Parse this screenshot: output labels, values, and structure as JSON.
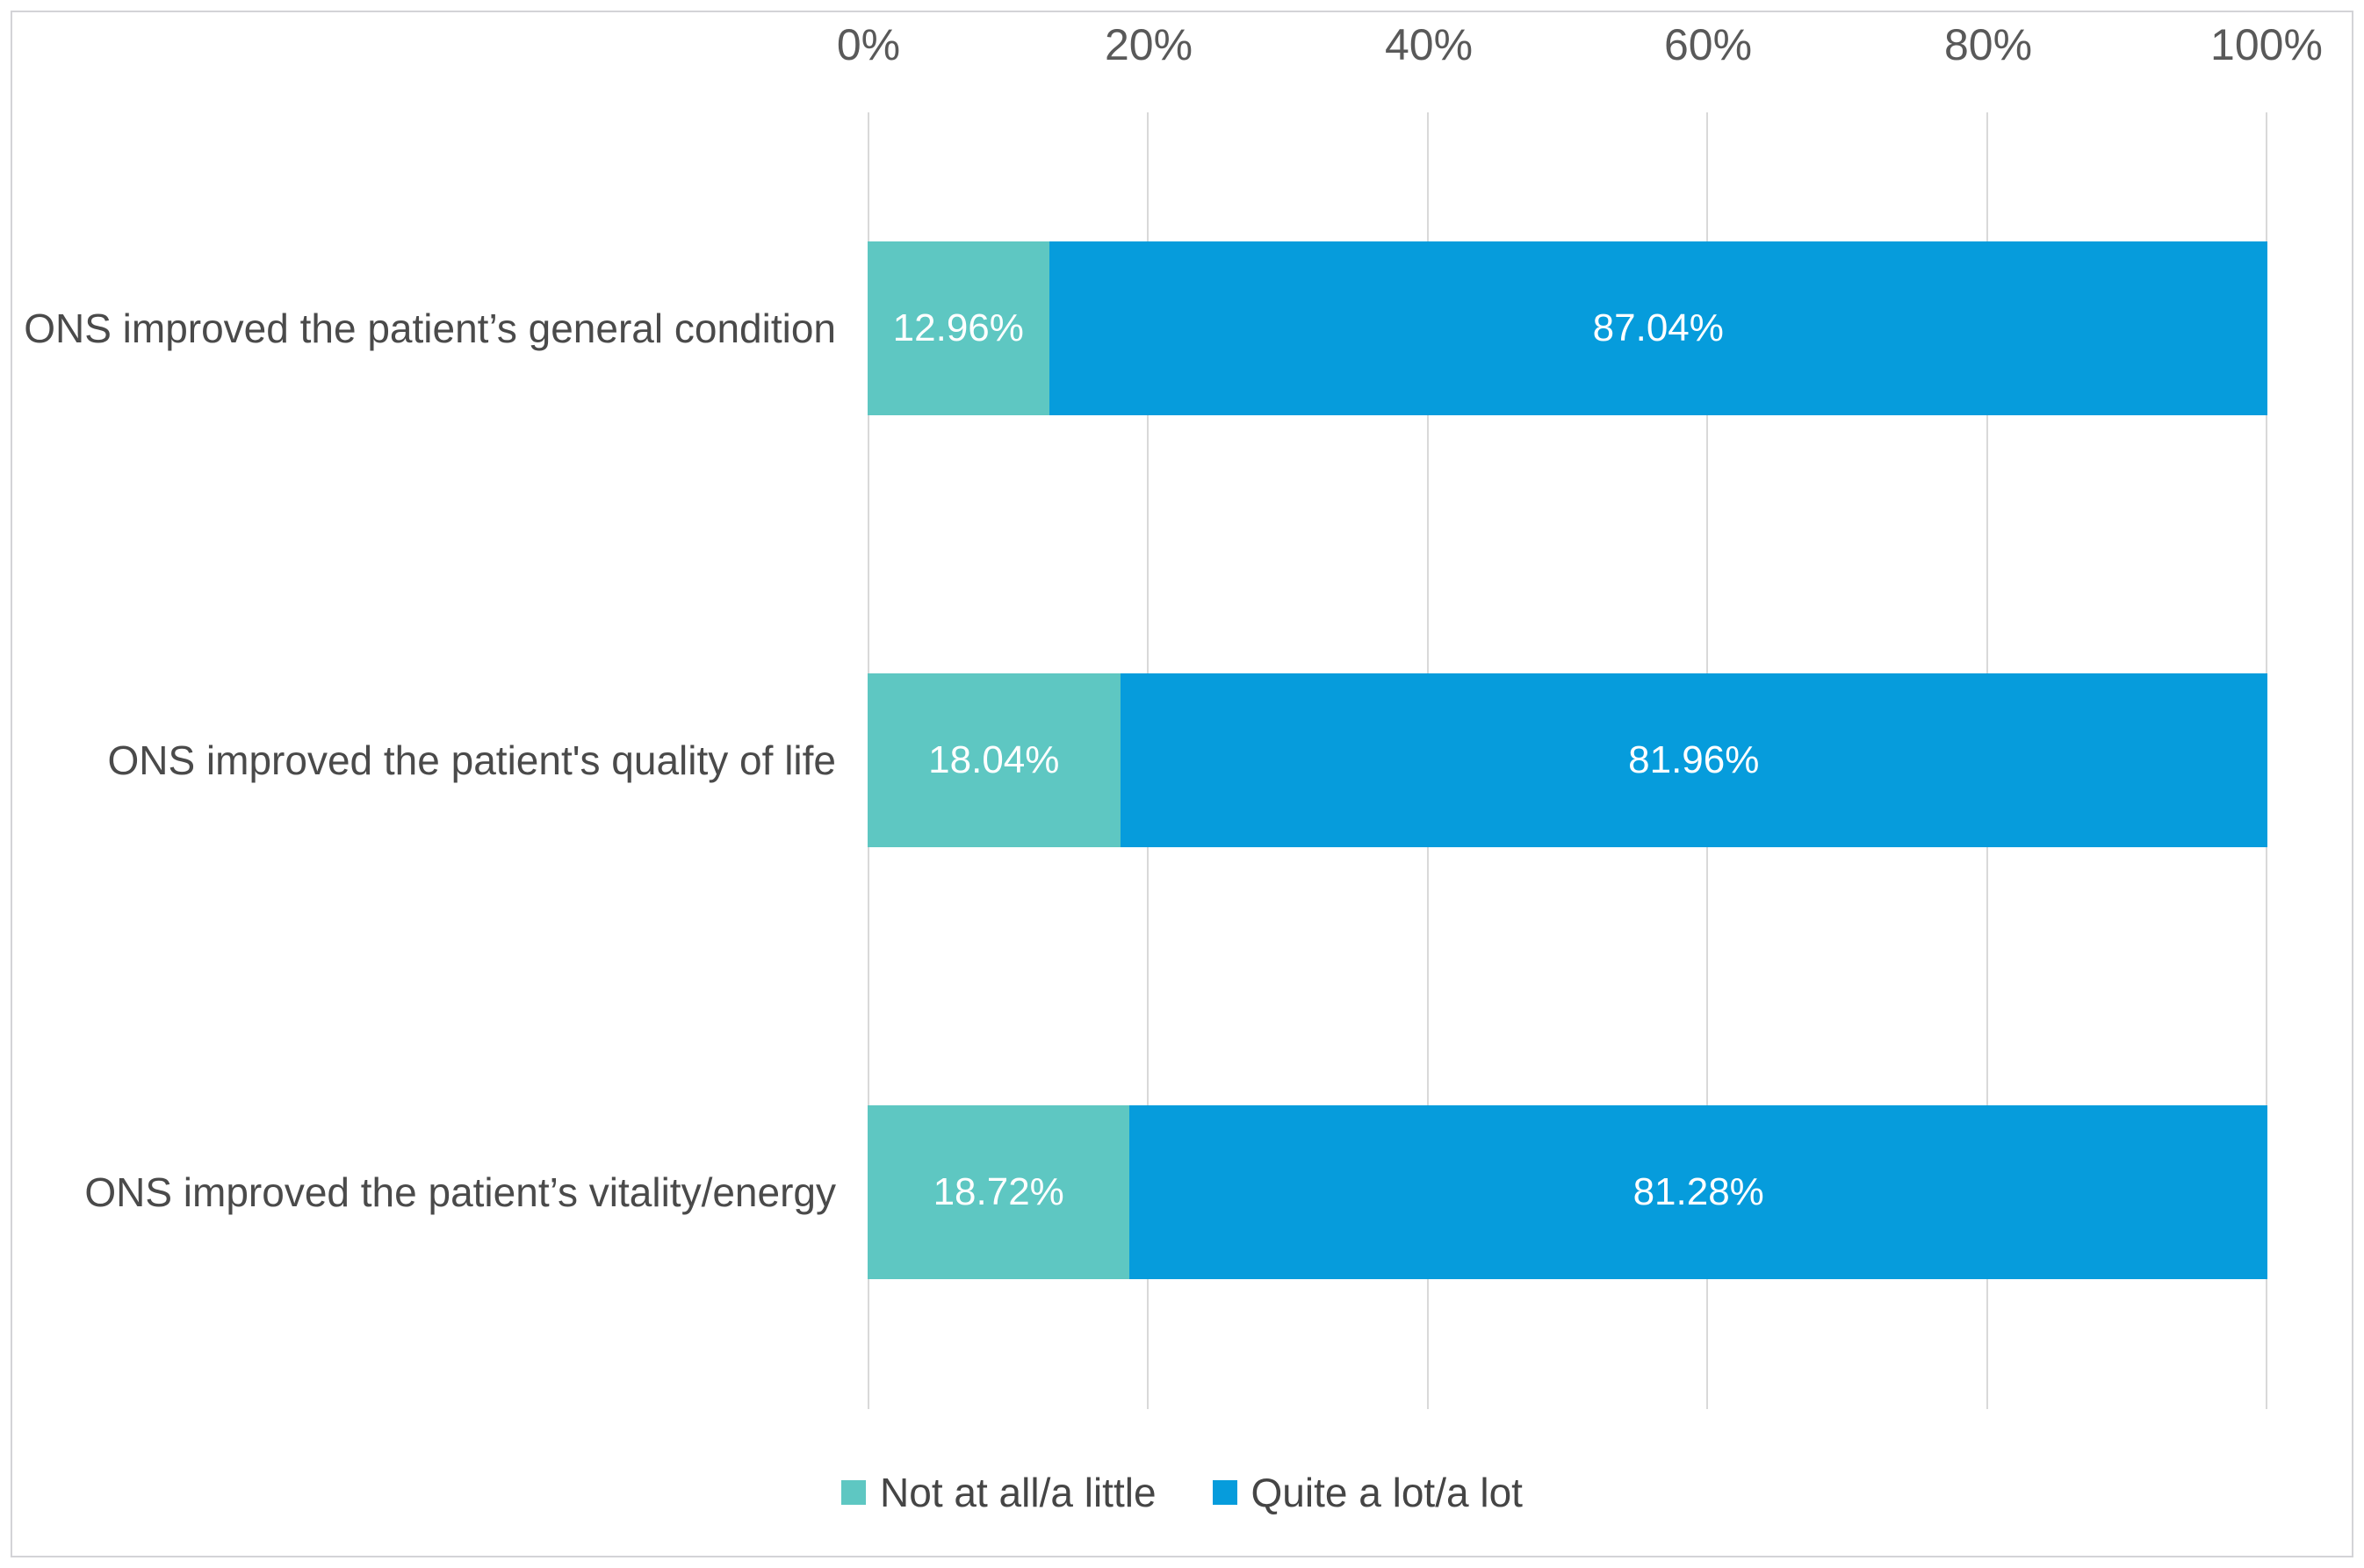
{
  "chart_data": {
    "type": "bar",
    "orientation": "horizontal",
    "stacked": true,
    "title": "",
    "xlabel": "",
    "ylabel": "",
    "axis_range": [
      0,
      100
    ],
    "grid": true,
    "legend_position": "bottom",
    "categories": [
      "ONS improved the patient’s general condition",
      "ONS improved the patient's quality of life",
      "ONS improved the patient’s vitality/energy"
    ],
    "x_axis": {
      "position": "top",
      "ticks": [
        "0%",
        "20%",
        "40%",
        "60%",
        "80%",
        "100%"
      ]
    },
    "series": [
      {
        "name": "Not at all/a little",
        "color": "#5ec7c2",
        "values": [
          12.96,
          18.04,
          18.72
        ],
        "labels": [
          "12.96%",
          "18.04%",
          "18.72%"
        ]
      },
      {
        "name": "Quite a lot/a lot",
        "color": "#069cdc",
        "values": [
          87.04,
          81.96,
          81.28
        ],
        "labels": [
          "87.04%",
          "81.96%",
          "81.28%"
        ]
      }
    ]
  },
  "colors": {
    "teal": "#5ec7c2",
    "blue": "#069cdc",
    "gridline": "#d9d9d9",
    "tick_text": "#595959",
    "category_text": "#4a4a4a",
    "legend_text": "#454545",
    "data_label_text": "#ffffff",
    "figure_border": "#d3d3d7",
    "background": "#ffffff"
  }
}
